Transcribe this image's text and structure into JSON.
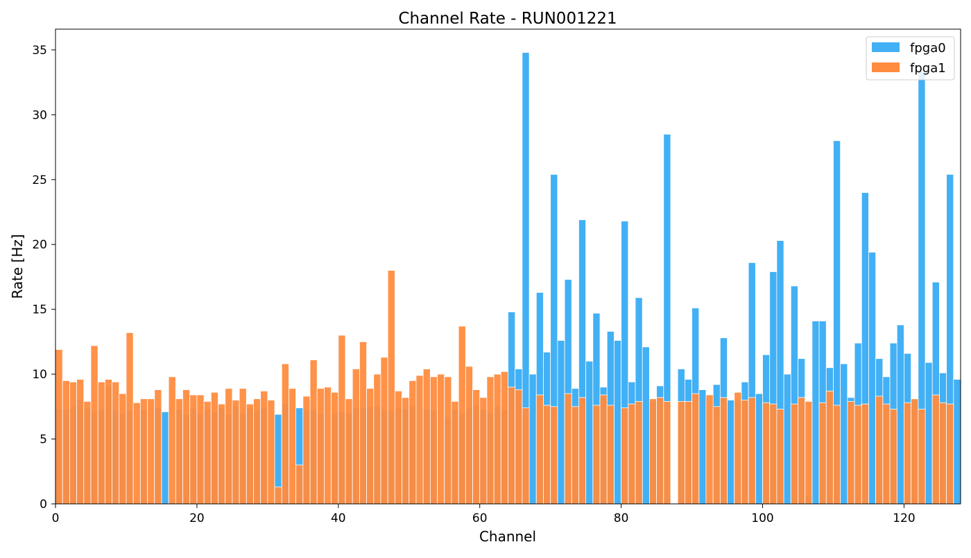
{
  "chart_data": {
    "type": "bar",
    "title": "Channel Rate - RUN001221",
    "xlabel": "Channel",
    "ylabel": "Rate [Hz]",
    "xlim": [
      0,
      128
    ],
    "ylim": [
      0,
      36.6
    ],
    "xticks": [
      "0",
      "20",
      "40",
      "60",
      "80",
      "100",
      "120"
    ],
    "yticks": [
      "0",
      "5",
      "10",
      "15",
      "20",
      "25",
      "30",
      "35"
    ],
    "grid": false,
    "legend_placement": "top-right",
    "channels_start": 0,
    "series": [
      {
        "name": "fpga0",
        "color": "#42B0F5",
        "values": [
          7.3,
          7.3,
          7.5,
          8.1,
          7.4,
          7.1,
          7.3,
          9.1,
          7.2,
          7.0,
          7.2,
          0,
          7.3,
          0,
          7.4,
          7.1,
          0.1,
          7.3,
          6.9,
          7.4,
          7.0,
          7.3,
          7.1,
          7.4,
          6.9,
          7.5,
          7.0,
          7.4,
          7.2,
          7.4,
          0.1,
          6.9,
          7.7,
          0,
          7.4,
          7.2,
          7.3,
          7.0,
          0,
          7.0,
          7.1,
          7.0,
          7.4,
          7.4,
          7.5,
          7.5,
          7.3,
          7.2,
          7.4,
          7.3,
          7.6,
          0,
          7.3,
          7.2,
          0,
          6.7,
          7.3,
          7.0,
          7.4,
          7.6,
          7.3,
          7.0,
          7.5,
          7.3,
          14.8,
          10.4,
          34.8,
          10.0,
          16.3,
          11.7,
          25.4,
          12.6,
          17.3,
          8.9,
          21.9,
          11.0,
          14.7,
          9.0,
          13.3,
          12.6,
          21.8,
          9.4,
          15.9,
          12.1,
          7.9,
          9.1,
          28.5,
          0,
          10.4,
          9.6,
          15.1,
          8.8,
          0,
          9.2,
          12.8,
          8.0,
          8.0,
          9.4,
          18.6,
          8.5,
          11.5,
          17.9,
          20.3,
          10.0,
          16.8,
          11.2,
          0.7,
          14.1,
          14.1,
          10.5,
          28.0,
          10.8,
          8.2,
          12.4,
          24.0,
          19.4,
          11.2,
          9.8,
          12.4,
          13.8,
          11.6,
          8.0,
          33.4,
          10.9,
          17.1,
          10.1,
          25.4,
          9.6
        ]
      },
      {
        "name": "fpga1",
        "color": "#FF8C3F",
        "values": [
          11.9,
          9.5,
          9.4,
          9.6,
          7.9,
          12.2,
          9.4,
          9.6,
          9.4,
          8.5,
          13.2,
          7.8,
          8.1,
          8.1,
          8.8,
          0,
          9.8,
          8.1,
          8.8,
          8.4,
          8.4,
          7.9,
          8.6,
          7.7,
          8.9,
          8.0,
          8.9,
          7.7,
          8.1,
          8.7,
          8.0,
          1.3,
          10.8,
          8.9,
          3.0,
          8.3,
          11.1,
          8.9,
          9.0,
          8.6,
          13.0,
          8.1,
          10.4,
          12.5,
          8.9,
          10.0,
          11.3,
          18.0,
          8.7,
          8.2,
          9.5,
          9.9,
          10.4,
          9.8,
          10.0,
          9.8,
          7.9,
          13.7,
          10.6,
          8.8,
          8.2,
          9.8,
          10.0,
          10.2,
          9.0,
          8.8,
          7.4,
          0,
          8.4,
          7.6,
          7.5,
          0,
          8.5,
          7.5,
          8.2,
          0,
          7.6,
          8.4,
          7.6,
          0,
          7.4,
          7.7,
          7.9,
          0,
          8.1,
          8.2,
          7.9,
          0,
          7.9,
          7.9,
          8.5,
          0,
          8.4,
          7.5,
          8.2,
          0,
          8.6,
          8.0,
          8.2,
          0,
          7.8,
          7.7,
          7.3,
          0,
          7.7,
          8.2,
          7.9,
          0,
          7.8,
          8.7,
          7.6,
          0,
          7.9,
          7.6,
          7.7,
          0,
          8.3,
          7.7,
          7.3,
          0,
          7.8,
          8.1,
          7.3,
          0,
          8.4,
          7.8,
          7.7,
          0
        ]
      }
    ]
  }
}
